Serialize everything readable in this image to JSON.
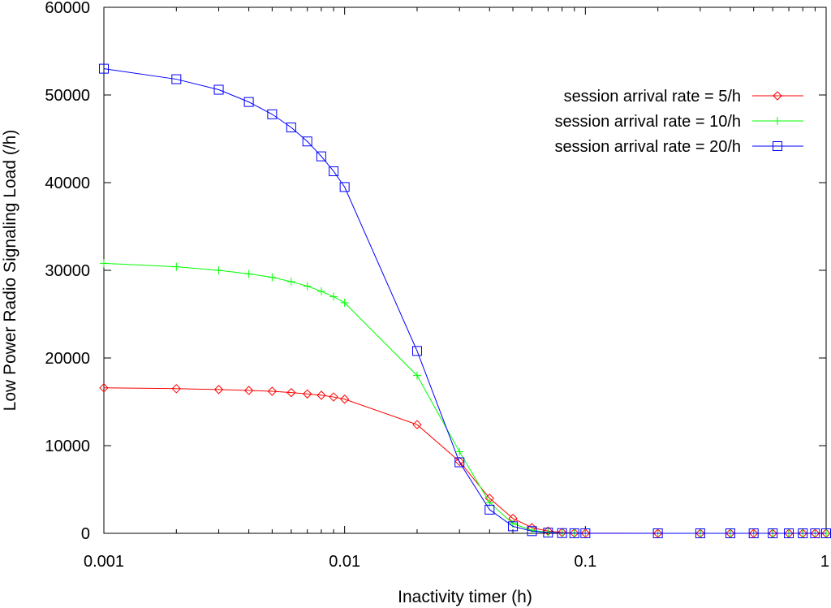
{
  "chart_data": {
    "type": "line",
    "title": "",
    "xlabel": "Inactivity timer (h)",
    "ylabel": "Low Power Radio Signaling Load (/h)",
    "xscale": "log",
    "xlim": [
      0.001,
      1
    ],
    "ylim": [
      0,
      60000
    ],
    "x_ticks": [
      {
        "value": 0.001,
        "label": "0.001"
      },
      {
        "value": 0.01,
        "label": "0.01"
      },
      {
        "value": 0.1,
        "label": "0.1"
      },
      {
        "value": 1,
        "label": "1"
      }
    ],
    "y_ticks": [
      {
        "value": 0,
        "label": "0"
      },
      {
        "value": 10000,
        "label": "10000"
      },
      {
        "value": 20000,
        "label": "20000"
      },
      {
        "value": 30000,
        "label": "30000"
      },
      {
        "value": 40000,
        "label": "40000"
      },
      {
        "value": 50000,
        "label": "50000"
      },
      {
        "value": 60000,
        "label": "60000"
      }
    ],
    "grid": false,
    "legend_position": "top-right",
    "x": [
      0.001,
      0.002,
      0.003,
      0.004,
      0.005,
      0.006,
      0.007,
      0.008,
      0.009,
      0.01,
      0.02,
      0.03,
      0.04,
      0.05,
      0.06,
      0.07,
      0.08,
      0.09,
      0.1,
      0.2,
      0.3,
      0.4,
      0.5,
      0.6,
      0.7,
      0.8,
      0.9,
      1
    ],
    "series": [
      {
        "name": "session arrival rate = 5/h",
        "color": "#ff0000",
        "marker": "diamond",
        "values": [
          16600,
          16500,
          16400,
          16300,
          16200,
          16050,
          15900,
          15750,
          15550,
          15300,
          12400,
          8200,
          4000,
          1700,
          650,
          250,
          100,
          40,
          15,
          0,
          0,
          0,
          0,
          0,
          0,
          0,
          0,
          0
        ]
      },
      {
        "name": "session arrival rate = 10/h",
        "color": "#00ff00",
        "marker": "plus",
        "values": [
          30800,
          30400,
          30000,
          29600,
          29200,
          28700,
          28200,
          27600,
          27000,
          26300,
          18000,
          9300,
          3500,
          1100,
          350,
          120,
          40,
          15,
          5,
          0,
          0,
          0,
          0,
          0,
          0,
          0,
          0,
          0
        ]
      },
      {
        "name": "session arrival rate = 20/h",
        "color": "#0000ff",
        "marker": "square",
        "values": [
          53000,
          51800,
          50600,
          49200,
          47800,
          46300,
          44700,
          43000,
          41300,
          39500,
          20800,
          8100,
          2700,
          800,
          250,
          80,
          25,
          8,
          3,
          0,
          0,
          0,
          0,
          0,
          0,
          0,
          0,
          0
        ]
      }
    ]
  }
}
